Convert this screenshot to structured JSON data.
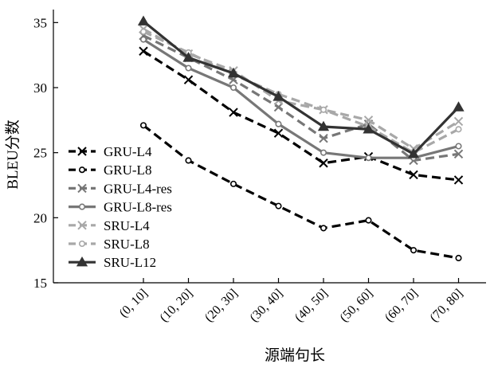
{
  "chart_data": {
    "type": "line",
    "xlabel": "源端句长",
    "ylabel": "BLEU分数",
    "ylim": [
      15,
      36
    ],
    "yticks": [
      15,
      20,
      25,
      30,
      35
    ],
    "grid": false,
    "legend": "bottom-left",
    "categories": [
      "(0, 10]",
      "(10, 20]",
      "(20, 30]",
      "(30, 40]",
      "(40, 50]",
      "(50, 60]",
      "(60, 70]",
      "(70, 80]"
    ],
    "series": [
      {
        "name": "GRU-L4",
        "color": "#000000",
        "dash": "dashed",
        "marker": "x",
        "values": [
          32.8,
          30.6,
          28.1,
          26.5,
          24.2,
          24.7,
          23.3,
          22.9
        ]
      },
      {
        "name": "GRU-L8",
        "color": "#000000",
        "dash": "dashed",
        "marker": "open-circle",
        "values": [
          27.1,
          24.4,
          22.6,
          20.9,
          19.2,
          19.8,
          17.5,
          16.9
        ]
      },
      {
        "name": "GRU-L4-res",
        "color": "#777777",
        "dash": "dashed",
        "marker": "x",
        "values": [
          34.0,
          32.3,
          30.6,
          28.5,
          26.1,
          27.2,
          24.4,
          24.9
        ]
      },
      {
        "name": "GRU-L8-res",
        "color": "#777777",
        "dash": "solid",
        "marker": "open-circle",
        "values": [
          33.7,
          31.5,
          30.0,
          27.2,
          25.0,
          24.6,
          24.6,
          25.5
        ]
      },
      {
        "name": "SRU-L4",
        "color": "#a8a8a8",
        "dash": "dashed",
        "marker": "x",
        "values": [
          34.5,
          32.6,
          31.3,
          29.0,
          28.3,
          27.5,
          25.3,
          27.4
        ]
      },
      {
        "name": "SRU-L8",
        "color": "#a8a8a8",
        "dash": "dashed",
        "marker": "open-circle",
        "values": [
          34.3,
          32.7,
          31.0,
          29.5,
          28.3,
          27.0,
          25.0,
          26.8
        ]
      },
      {
        "name": "SRU-L12",
        "color": "#333333",
        "dash": "solid",
        "marker": "filled-triangle",
        "values": [
          35.1,
          32.3,
          31.1,
          29.3,
          27.0,
          26.8,
          24.9,
          28.5
        ]
      }
    ]
  }
}
